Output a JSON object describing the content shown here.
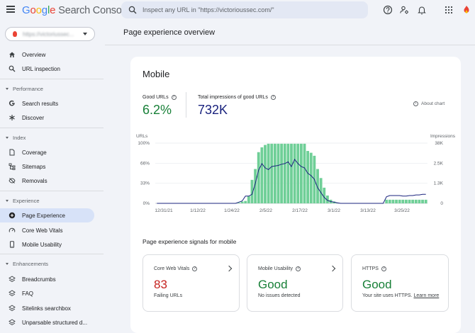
{
  "header": {
    "logo_google": [
      "G",
      "o",
      "o",
      "g",
      "l",
      "e"
    ],
    "logo_product": "Search Console",
    "search_placeholder": "Inspect any URL in \"https://victorioussec.com/\""
  },
  "sidebar": {
    "property": "https://victoriussec...",
    "items_top": [
      {
        "label": "Overview",
        "icon": "home-icon"
      },
      {
        "label": "URL inspection",
        "icon": "search-icon"
      }
    ],
    "sections": [
      {
        "label": "Performance",
        "items": [
          {
            "label": "Search results",
            "icon": "google-g-icon"
          },
          {
            "label": "Discover",
            "icon": "asterisk-icon"
          }
        ]
      },
      {
        "label": "Index",
        "items": [
          {
            "label": "Coverage",
            "icon": "file-icon"
          },
          {
            "label": "Sitemaps",
            "icon": "sitemap-icon"
          },
          {
            "label": "Removals",
            "icon": "eye-off-icon"
          }
        ]
      },
      {
        "label": "Experience",
        "items": [
          {
            "label": "Page Experience",
            "icon": "plus-circle-icon",
            "active": true
          },
          {
            "label": "Core Web Vitals",
            "icon": "speed-icon"
          },
          {
            "label": "Mobile Usability",
            "icon": "phone-icon"
          }
        ]
      },
      {
        "label": "Enhancements",
        "items": [
          {
            "label": "Breadcrumbs",
            "icon": "layers-icon"
          },
          {
            "label": "FAQ",
            "icon": "layers-icon"
          },
          {
            "label": "Sitelinks searchbox",
            "icon": "layers-icon"
          },
          {
            "label": "Unparsable structured d...",
            "icon": "layers-icon"
          }
        ]
      }
    ]
  },
  "main": {
    "page_title": "Page experience overview",
    "card_title": "Mobile",
    "good_urls_label": "Good URLs",
    "good_urls_value": "6.2%",
    "impressions_label": "Total impressions of good URLs",
    "impressions_value": "732K",
    "about_chart": "About chart",
    "signals_title": "Page experience signals for mobile",
    "signals": [
      {
        "name": "Core Web Vitals",
        "value": "83",
        "sub": "Failing URLs",
        "color": "#c5221f"
      },
      {
        "name": "Mobile Usability",
        "value": "Good",
        "sub": "No issues detected",
        "color": "#188038"
      },
      {
        "name": "HTTPS",
        "value": "Good",
        "sub": "Your site uses HTTPS.",
        "link": "Learn more",
        "color": "#188038"
      }
    ]
  },
  "chart_data": {
    "type": "bar",
    "left_axis_label": "URLs",
    "right_axis_label": "Impressions",
    "left_ticks": [
      "100%",
      "66%",
      "33%",
      "0%"
    ],
    "right_ticks": [
      "38K",
      "2.5K",
      "1.3K",
      "0"
    ],
    "x_tick_labels": [
      "12/31/21",
      "1/12/22",
      "1/24/22",
      "2/5/22",
      "2/17/22",
      "3/1/22",
      "3/13/22",
      "3/25/22"
    ],
    "bar_series_name": "Good URLs",
    "bar_values_pct": [
      0,
      0,
      0,
      0,
      0,
      0,
      0,
      0,
      0,
      0,
      0,
      0,
      0,
      0,
      0,
      0,
      0,
      0,
      0,
      0,
      0,
      0,
      0,
      0,
      0,
      1,
      3,
      4,
      12,
      39,
      57,
      85,
      93,
      97,
      99,
      99,
      99,
      99,
      99,
      99,
      99,
      99,
      99,
      99,
      99,
      99,
      87,
      84,
      79,
      57,
      42,
      26,
      13,
      6,
      3,
      1,
      0,
      0,
      0,
      0,
      0,
      0,
      0,
      0,
      0,
      0,
      0,
      0,
      0,
      0,
      6,
      6,
      6,
      6,
      6,
      6,
      6,
      6,
      6,
      6,
      6,
      6,
      6
    ],
    "line_values_pct": [
      0,
      0,
      0,
      0,
      0,
      0,
      0,
      0,
      0,
      0,
      0,
      0,
      0,
      0,
      0,
      0,
      0,
      0,
      0,
      0,
      0,
      0,
      0,
      0,
      0,
      2,
      4,
      12,
      12,
      15,
      33,
      55,
      66,
      59,
      56,
      61,
      62,
      63,
      65,
      66,
      69,
      61,
      73,
      66,
      61,
      59,
      50,
      46,
      40,
      26,
      18,
      10,
      5,
      3,
      2,
      1,
      0,
      0,
      0,
      0,
      0,
      0,
      0,
      0,
      0,
      0,
      0,
      0,
      0,
      0,
      11,
      13,
      13,
      13,
      13,
      12,
      12,
      13,
      13,
      14,
      14,
      15,
      15
    ],
    "bar_color": "#6fcf97",
    "line_color": "#1a237e",
    "grid": true
  },
  "colors": {
    "good_urls": "#188038",
    "impressions": "#1a237e",
    "active_nav": "#d7e2f8"
  }
}
